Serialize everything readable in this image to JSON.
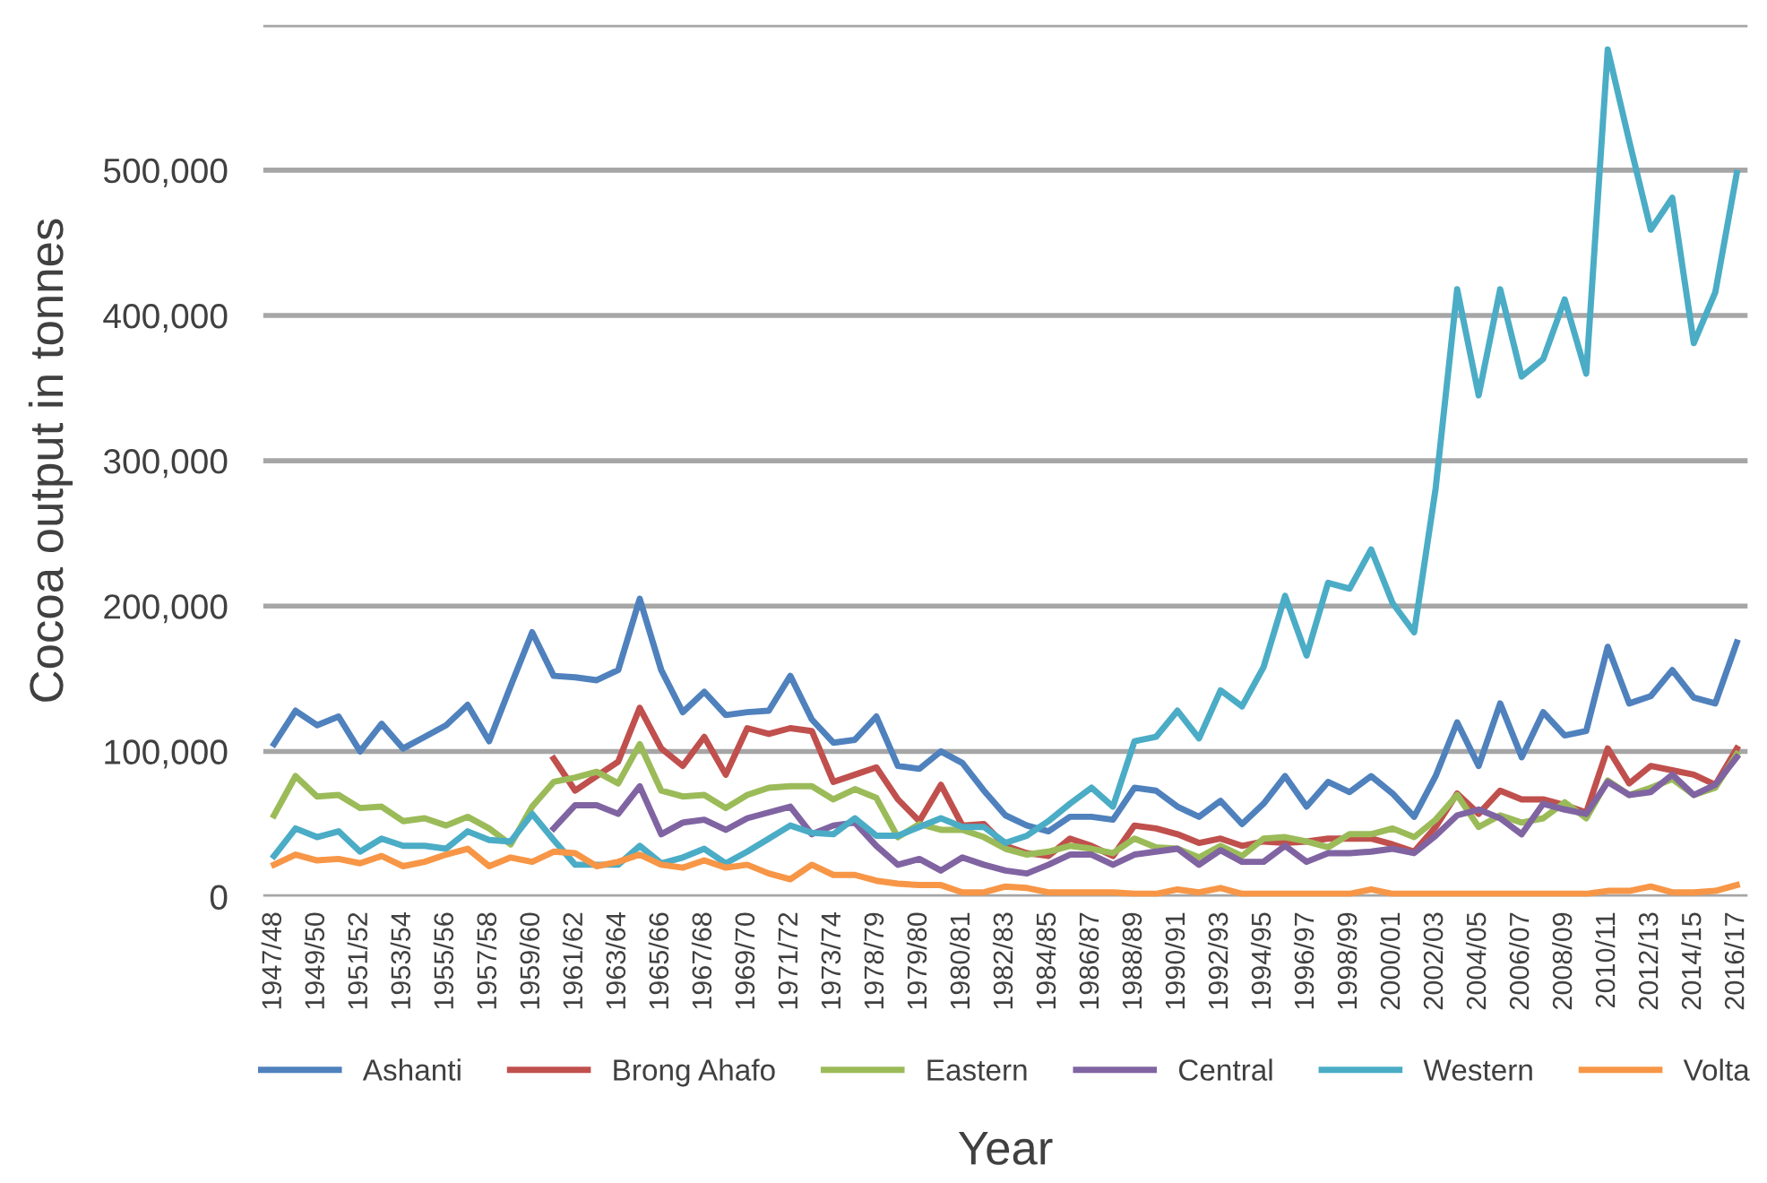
{
  "chart_data": {
    "type": "line",
    "xlabel": "Year",
    "ylabel": "Cocoa output in tonnes",
    "categories": [
      "1947/48",
      null,
      "1949/50",
      null,
      "1951/52",
      null,
      "1953/54",
      null,
      "1955/56",
      null,
      "1957/58",
      null,
      "1959/60",
      null,
      "1961/62",
      null,
      "1963/64",
      null,
      "1965/66",
      null,
      "1967/68",
      null,
      "1969/70",
      null,
      "1971/72",
      null,
      "1973/74",
      null,
      "1978/79",
      null,
      "1979/80",
      null,
      "1980/81",
      null,
      "1982/83",
      null,
      "1984/85",
      null,
      "1986/87",
      null,
      "1988/89",
      null,
      "1990/91",
      null,
      "1992/93",
      null,
      "1994/95",
      null,
      "1996/97",
      null,
      "1998/99",
      null,
      "2000/01",
      null,
      "2002/03",
      null,
      "2004/05",
      null,
      "2006/07",
      null,
      "2008/09",
      null,
      "2010/11",
      null,
      "2012/13",
      null,
      "2014/15",
      null,
      "2016/17"
    ],
    "series": [
      {
        "name": "Ashanti",
        "color": "#4f81bd",
        "values": [
          105000,
          128000,
          118000,
          124000,
          100000,
          119000,
          102000,
          110000,
          118000,
          132000,
          107000,
          145000,
          182000,
          152000,
          151000,
          149000,
          156000,
          205000,
          156000,
          127000,
          141000,
          125000,
          127000,
          128000,
          152000,
          122000,
          106000,
          108000,
          124000,
          90000,
          88000,
          100000,
          92000,
          73000,
          56000,
          49000,
          45000,
          55000,
          55000,
          53000,
          75000,
          73000,
          62000,
          55000,
          66000,
          50000,
          64000,
          83000,
          62000,
          79000,
          72000,
          83000,
          71000,
          55000,
          83000,
          120000,
          90000,
          133000,
          96000,
          127000,
          111000,
          114000,
          172000,
          133000,
          138000,
          156000,
          137000,
          133000,
          175000
        ]
      },
      {
        "name": "Brong Ahafo",
        "color": "#c0504d",
        "values": [
          null,
          null,
          null,
          null,
          null,
          null,
          null,
          null,
          null,
          null,
          null,
          null,
          null,
          95000,
          73000,
          83000,
          93000,
          130000,
          102000,
          90000,
          110000,
          84000,
          116000,
          112000,
          116000,
          114000,
          79000,
          84000,
          89000,
          67000,
          52000,
          77000,
          49000,
          50000,
          35000,
          30000,
          28000,
          40000,
          35000,
          28000,
          49000,
          47000,
          43000,
          37000,
          40000,
          35000,
          38000,
          37000,
          38000,
          40000,
          40000,
          40000,
          36000,
          31000,
          48000,
          71000,
          57000,
          73000,
          67000,
          67000,
          63000,
          58000,
          102000,
          78000,
          90000,
          87000,
          84000,
          77000,
          102000
        ]
      },
      {
        "name": "Eastern",
        "color": "#9bbb59",
        "values": [
          56000,
          83000,
          69000,
          70000,
          61000,
          62000,
          52000,
          54000,
          49000,
          55000,
          47000,
          36000,
          62000,
          79000,
          82000,
          86000,
          78000,
          105000,
          73000,
          69000,
          70000,
          61000,
          70000,
          75000,
          76000,
          76000,
          67000,
          74000,
          68000,
          41000,
          50000,
          46000,
          46000,
          41000,
          33000,
          29000,
          31000,
          35000,
          33000,
          30000,
          40000,
          34000,
          33000,
          27000,
          35000,
          28000,
          40000,
          41000,
          38000,
          34000,
          43000,
          43000,
          47000,
          41000,
          53000,
          70000,
          48000,
          56000,
          51000,
          54000,
          65000,
          54000,
          80000,
          70000,
          75000,
          81000,
          70000,
          75000,
          98000
        ]
      },
      {
        "name": "Central",
        "color": "#8064a2",
        "values": [
          null,
          null,
          null,
          null,
          null,
          null,
          null,
          null,
          null,
          null,
          null,
          null,
          null,
          47000,
          63000,
          63000,
          57000,
          76000,
          43000,
          51000,
          53000,
          46000,
          54000,
          58000,
          62000,
          43000,
          49000,
          51000,
          35000,
          22000,
          26000,
          18000,
          27000,
          22000,
          18000,
          16000,
          22000,
          29000,
          29000,
          22000,
          29000,
          31000,
          33000,
          22000,
          32000,
          24000,
          24000,
          35000,
          24000,
          30000,
          30000,
          31000,
          33000,
          30000,
          42000,
          56000,
          60000,
          54000,
          43000,
          64000,
          60000,
          57000,
          79000,
          70000,
          72000,
          84000,
          70000,
          77000,
          96000
        ]
      },
      {
        "name": "Western",
        "color": "#4bacc6",
        "values": [
          28000,
          47000,
          41000,
          45000,
          31000,
          40000,
          35000,
          35000,
          33000,
          45000,
          39000,
          38000,
          57000,
          39000,
          22000,
          22000,
          22000,
          35000,
          23000,
          27000,
          33000,
          23000,
          31000,
          40000,
          49000,
          44000,
          43000,
          54000,
          42000,
          42000,
          48000,
          54000,
          48000,
          48000,
          37000,
          42000,
          52000,
          64000,
          75000,
          62000,
          107000,
          110000,
          128000,
          109000,
          142000,
          131000,
          158000,
          207000,
          166000,
          216000,
          212000,
          239000,
          202000,
          182000,
          281000,
          418000,
          345000,
          418000,
          358000,
          370000,
          411000,
          360000,
          583000,
          520000,
          459000,
          481000,
          381000,
          416000,
          498000
        ]
      },
      {
        "name": "Volta",
        "color": "#f79646",
        "values": [
          22000,
          29000,
          25000,
          26000,
          23000,
          28000,
          21000,
          24000,
          29000,
          33000,
          21000,
          27000,
          24000,
          31000,
          30000,
          21000,
          24000,
          29000,
          22000,
          20000,
          25000,
          20000,
          22000,
          16000,
          12000,
          22000,
          15000,
          15000,
          11000,
          9000,
          8000,
          8000,
          3000,
          3000,
          7000,
          6000,
          3000,
          3000,
          3000,
          3000,
          2000,
          2000,
          5000,
          3000,
          6000,
          2000,
          2000,
          2000,
          2000,
          2000,
          2000,
          5000,
          2000,
          2000,
          2000,
          2000,
          2000,
          2000,
          2000,
          2000,
          2000,
          2000,
          4000,
          4000,
          7000,
          3000,
          3000,
          4000,
          8000
        ]
      }
    ],
    "ylim": [
      0,
      600000
    ],
    "yticks": [
      0,
      {
        "value": 100000,
        "label": "100,000"
      },
      {
        "value": 200000,
        "label": "200,000"
      },
      {
        "value": 300000,
        "label": "300,000"
      },
      {
        "value": 400000,
        "label": "400,000"
      },
      {
        "value": 500000,
        "label": "500,000"
      },
      {
        "value": 600000,
        "label": null
      }
    ],
    "grid": "y",
    "legend": "bottom",
    "marker": "none",
    "line_style": "solid"
  }
}
